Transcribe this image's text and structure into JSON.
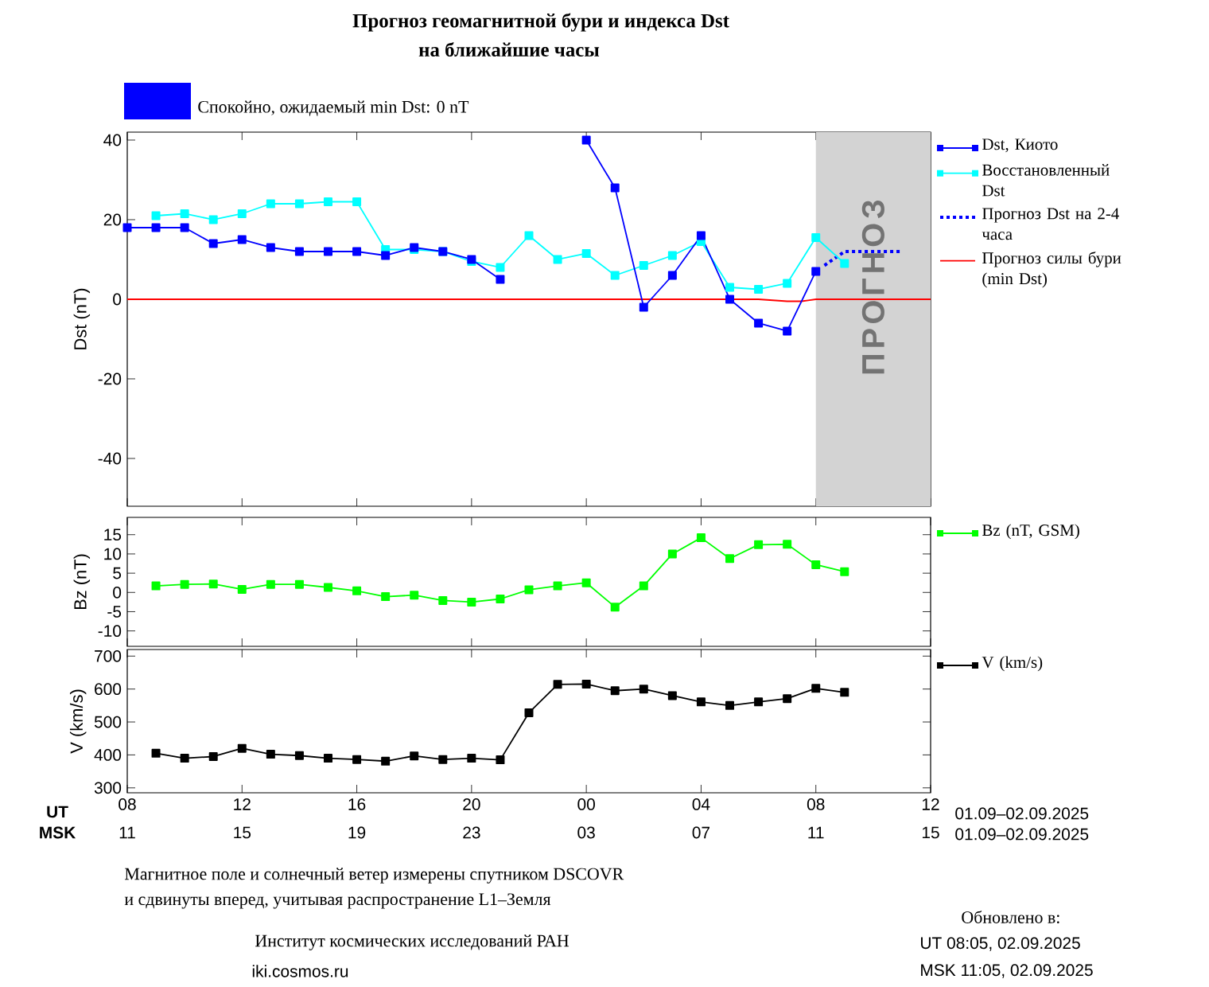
{
  "chart_data": [
    {
      "type": "line",
      "title": "Прогноз геомагнитной бури и индекса Dst",
      "subtitle": "на ближайшие часы",
      "ylabel": "Dst (nT)",
      "xlim": [
        8,
        36
      ],
      "xticks": [
        8,
        12,
        16,
        20,
        24,
        28,
        32,
        36
      ],
      "ylim": [
        -52,
        42
      ],
      "yticks": [
        -40,
        -20,
        0,
        20,
        40
      ],
      "tick_labels": "y",
      "legend": "right",
      "series": [
        {
          "name": "Dst, Киото",
          "color": "#0000ff",
          "marker": "square",
          "x": [
            8,
            9,
            10,
            11,
            12,
            13,
            14,
            15,
            16,
            17,
            18,
            19,
            20,
            21,
            22,
            23,
            24,
            25,
            26,
            27,
            28,
            29,
            30,
            31,
            32
          ],
          "values": [
            18,
            18,
            18,
            14,
            15,
            13,
            12,
            12,
            12,
            11,
            13,
            12,
            10,
            5,
            null,
            null,
            40,
            28,
            -2,
            6,
            16,
            0,
            -6,
            -8,
            7
          ]
        },
        {
          "name": "Восстановленный Dst",
          "color": "#00ffff",
          "marker": "square",
          "x": [
            9,
            10,
            11,
            12,
            13,
            14,
            15,
            16,
            17,
            18,
            19,
            20,
            21,
            22,
            23,
            24,
            25,
            26,
            27,
            28,
            29,
            30,
            31,
            32,
            33
          ],
          "values": [
            21,
            21.5,
            20,
            21.5,
            24,
            24,
            24.5,
            24.5,
            12.5,
            12.5,
            12,
            9.5,
            8,
            16,
            10,
            11.5,
            6,
            8.5,
            11,
            14.5,
            3,
            2.5,
            4,
            15.5,
            9
          ]
        },
        {
          "name": "Прогноз Dst на 2-4 часа",
          "color": "#0000ff",
          "marker": "none",
          "line_style": "dotted",
          "x": [
            32.3,
            33,
            35
          ],
          "values": [
            8.5,
            12,
            12
          ]
        },
        {
          "name": "Прогноз силы бури (min Dst)",
          "color": "#ff0000",
          "marker": "none",
          "x": [
            8,
            30,
            31,
            31.5,
            32,
            36
          ],
          "values": [
            0,
            0,
            -0.5,
            -0.5,
            0,
            0
          ]
        }
      ],
      "bands": [
        {
          "axis": "x",
          "from": 32,
          "to": 36,
          "label": "ПРОГНОЗ",
          "color": "#d3d3d3"
        }
      ],
      "annotations": [
        "Спокойно, ожидаемый min Dst: 0 nT"
      ]
    },
    {
      "type": "line",
      "ylabel": "Bz (nT)",
      "xlim": [
        8,
        36
      ],
      "xticks": [
        8,
        12,
        16,
        20,
        24,
        28,
        32,
        36
      ],
      "ylim": [
        -14,
        19.5
      ],
      "yticks": [
        -10,
        -5,
        0,
        5,
        10,
        15
      ],
      "tick_labels": "y",
      "legend": "right",
      "series": [
        {
          "name": "Bz (nT, GSM)",
          "color": "#00ff00",
          "marker": "square",
          "x": [
            9,
            10,
            11,
            12,
            13,
            14,
            15,
            16,
            17,
            18,
            19,
            20,
            21,
            22,
            23,
            24,
            25,
            26,
            27,
            28,
            29,
            30,
            31,
            32,
            33
          ],
          "values": [
            1.7,
            2.1,
            2.2,
            0.8,
            2.1,
            2.1,
            1.3,
            0.4,
            -1.1,
            -0.7,
            -2.1,
            -2.5,
            -1.7,
            0.7,
            1.7,
            2.5,
            -3.8,
            1.7,
            10,
            14.2,
            8.8,
            12.4,
            12.5,
            7.2,
            5.4
          ]
        }
      ]
    },
    {
      "type": "line",
      "ylabel": "V (km/s)",
      "xlabel": "UT",
      "x2label": "MSK",
      "xlim": [
        8,
        36
      ],
      "x2lim": [
        "2025-09-01T11:00",
        "2025-09-02T15:00"
      ],
      "xticks": [
        {
          "value": 8,
          "label": "08"
        },
        12,
        16,
        20,
        {
          "value": 24,
          "label": "00"
        },
        {
          "value": 28,
          "label": "04"
        },
        {
          "value": 32,
          "label": "08"
        },
        {
          "value": 36,
          "label": "12"
        }
      ],
      "x2ticks": [
        {
          "value": "2025-09-01T11:00",
          "label": "11"
        },
        {
          "value": "2025-09-01T15:00",
          "label": "15"
        },
        {
          "value": "2025-09-01T19:00",
          "label": "19"
        },
        {
          "value": "2025-09-01T23:00",
          "label": "23"
        },
        {
          "value": "2025-09-02T03:00",
          "label": "03"
        },
        {
          "value": "2025-09-02T07:00",
          "label": "07"
        },
        {
          "value": "2025-09-02T11:00",
          "label": "11"
        },
        {
          "value": "2025-09-02T15:00",
          "label": "15"
        }
      ],
      "ylim": [
        285,
        720
      ],
      "yticks": [
        300,
        400,
        500,
        600,
        700
      ],
      "legend": "right",
      "series": [
        {
          "name": "V (km/s)",
          "color": "#000000",
          "marker": "square",
          "x": [
            9,
            10,
            11,
            12,
            13,
            14,
            15,
            16,
            17,
            18,
            19,
            20,
            21,
            22,
            23,
            24,
            25,
            26,
            27,
            28,
            29,
            30,
            31,
            32,
            33
          ],
          "values": [
            405,
            390,
            395,
            420,
            402,
            398,
            390,
            386,
            381,
            397,
            386,
            390,
            385,
            528,
            614,
            615,
            595,
            600,
            580,
            561,
            550,
            561,
            571,
            602,
            590
          ]
        }
      ],
      "annotations": [
        "01.09–02.09.2025",
        "01.09–02.09.2025",
        "Магнитное поле и солнечный ветер измерены спутником DSCOVR",
        "и сдвинуты вперед, учитывая распространение L1–Земля",
        "Институт космических исследований РАН",
        "iki.cosmos.ru",
        "Обновлено в:",
        "UT 08:05, 02.09.2025",
        "MSK 11:05, 02.09.2025"
      ]
    }
  ]
}
